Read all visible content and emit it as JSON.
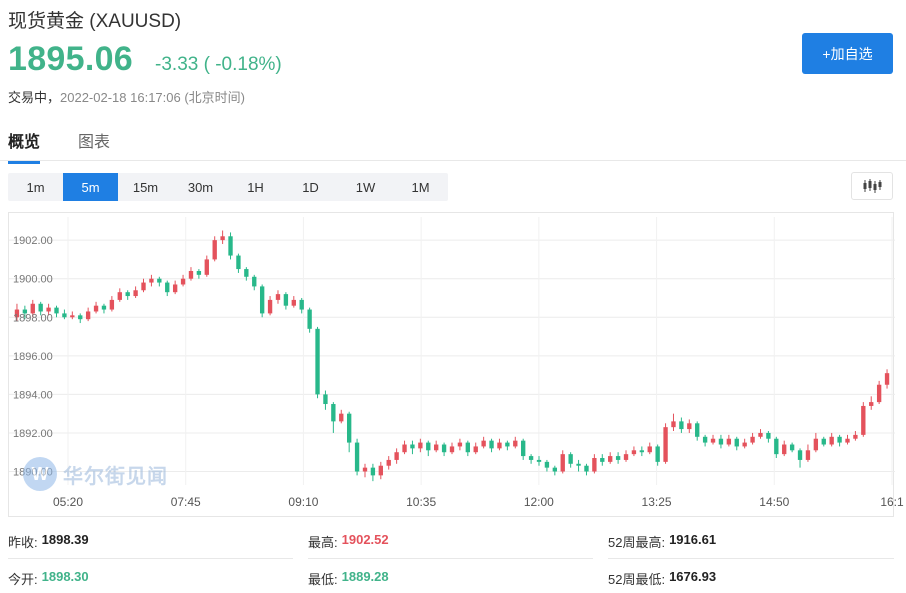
{
  "header": {
    "title": "现货黄金  (XAUUSD)",
    "price": "1895.06",
    "change": "-3.33 ( -0.18%)",
    "status_state": "交易中，",
    "status_time": "2022-02-18 16:17:06 (北京时间)",
    "add_button_label": "+加自选"
  },
  "tabs": [
    {
      "label": "概览",
      "active": true
    },
    {
      "label": "图表",
      "active": false
    }
  ],
  "periods": [
    "1m",
    "5m",
    "15m",
    "30m",
    "1H",
    "1D",
    "1W",
    "1M"
  ],
  "active_period": "5m",
  "chart_type_icon": "candlestick-icon",
  "watermark": {
    "text": "华尔街见闻",
    "logo_letter": "W"
  },
  "colors": {
    "up": "#e4525c",
    "down": "#28b88a",
    "accent": "#1f7fe3",
    "price": "#41b38a"
  },
  "chart_data": {
    "type": "candlestick",
    "y_ticks": [
      "1902.00",
      "1900.00",
      "1898.00",
      "1896.00",
      "1894.00",
      "1892.00",
      "1890.00"
    ],
    "ylim": [
      1889.3,
      1903.2
    ],
    "x_ticks": [
      "05:20",
      "07:45",
      "09:10",
      "10:35",
      "12:00",
      "13:25",
      "14:50",
      "16:1"
    ],
    "grid": true,
    "candles": [
      [
        1898.0,
        1898.4,
        1898.7,
        1897.8
      ],
      [
        1898.4,
        1898.2,
        1898.6,
        1897.9
      ],
      [
        1898.2,
        1898.7,
        1898.9,
        1898.0
      ],
      [
        1898.7,
        1898.3,
        1898.8,
        1898.1
      ],
      [
        1898.3,
        1898.5,
        1898.7,
        1898.1
      ],
      [
        1898.5,
        1898.2,
        1898.6,
        1898.0
      ],
      [
        1898.2,
        1898.0,
        1898.4,
        1897.9
      ],
      [
        1898.0,
        1898.1,
        1898.3,
        1897.9
      ],
      [
        1898.1,
        1897.9,
        1898.2,
        1897.7
      ],
      [
        1897.9,
        1898.3,
        1898.5,
        1897.8
      ],
      [
        1898.3,
        1898.6,
        1898.8,
        1898.2
      ],
      [
        1898.6,
        1898.4,
        1898.7,
        1898.2
      ],
      [
        1898.4,
        1898.9,
        1899.1,
        1898.3
      ],
      [
        1898.9,
        1899.3,
        1899.5,
        1898.8
      ],
      [
        1899.3,
        1899.1,
        1899.4,
        1898.9
      ],
      [
        1899.1,
        1899.4,
        1899.6,
        1899.0
      ],
      [
        1899.4,
        1899.8,
        1900.0,
        1899.3
      ],
      [
        1899.8,
        1900.0,
        1900.2,
        1899.6
      ],
      [
        1900.0,
        1899.8,
        1900.1,
        1899.6
      ],
      [
        1899.8,
        1899.3,
        1899.9,
        1899.1
      ],
      [
        1899.3,
        1899.7,
        1899.9,
        1899.2
      ],
      [
        1899.7,
        1900.0,
        1900.2,
        1899.6
      ],
      [
        1900.0,
        1900.4,
        1900.6,
        1899.9
      ],
      [
        1900.4,
        1900.2,
        1900.5,
        1900.0
      ],
      [
        1900.2,
        1901.0,
        1901.2,
        1900.1
      ],
      [
        1901.0,
        1902.0,
        1902.2,
        1900.9
      ],
      [
        1902.0,
        1902.2,
        1902.5,
        1901.8
      ],
      [
        1902.2,
        1901.2,
        1902.4,
        1901.0
      ],
      [
        1901.2,
        1900.5,
        1901.3,
        1900.3
      ],
      [
        1900.5,
        1900.1,
        1900.6,
        1899.9
      ],
      [
        1900.1,
        1899.6,
        1900.2,
        1899.4
      ],
      [
        1899.6,
        1898.2,
        1899.7,
        1898.0
      ],
      [
        1898.2,
        1898.9,
        1899.1,
        1898.1
      ],
      [
        1898.9,
        1899.2,
        1899.4,
        1898.7
      ],
      [
        1899.2,
        1898.6,
        1899.3,
        1898.4
      ],
      [
        1898.6,
        1898.9,
        1899.1,
        1898.5
      ],
      [
        1898.9,
        1898.4,
        1899.0,
        1898.2
      ],
      [
        1898.4,
        1897.4,
        1898.5,
        1897.2
      ],
      [
        1897.4,
        1894.0,
        1897.5,
        1893.8
      ],
      [
        1894.0,
        1893.5,
        1894.2,
        1893.2
      ],
      [
        1893.5,
        1892.6,
        1893.6,
        1892.0
      ],
      [
        1892.6,
        1893.0,
        1893.2,
        1892.5
      ],
      [
        1893.0,
        1891.5,
        1893.1,
        1891.0
      ],
      [
        1891.5,
        1890.0,
        1891.7,
        1889.8
      ],
      [
        1890.0,
        1890.2,
        1890.4,
        1889.7
      ],
      [
        1890.2,
        1889.8,
        1890.4,
        1889.5
      ],
      [
        1889.8,
        1890.3,
        1890.5,
        1889.6
      ],
      [
        1890.3,
        1890.6,
        1890.8,
        1890.1
      ],
      [
        1890.6,
        1891.0,
        1891.2,
        1890.4
      ],
      [
        1891.0,
        1891.4,
        1891.6,
        1890.9
      ],
      [
        1891.4,
        1891.2,
        1891.6,
        1890.9
      ],
      [
        1891.2,
        1891.5,
        1891.7,
        1891.0
      ],
      [
        1891.5,
        1891.1,
        1891.6,
        1890.8
      ],
      [
        1891.1,
        1891.4,
        1891.6,
        1891.0
      ],
      [
        1891.4,
        1891.0,
        1891.5,
        1890.8
      ],
      [
        1891.0,
        1891.3,
        1891.5,
        1890.9
      ],
      [
        1891.3,
        1891.5,
        1891.7,
        1891.1
      ],
      [
        1891.5,
        1891.0,
        1891.6,
        1890.8
      ],
      [
        1891.0,
        1891.3,
        1891.5,
        1890.9
      ],
      [
        1891.3,
        1891.6,
        1891.8,
        1891.2
      ],
      [
        1891.6,
        1891.2,
        1891.7,
        1891.0
      ],
      [
        1891.2,
        1891.5,
        1891.7,
        1891.1
      ],
      [
        1891.5,
        1891.3,
        1891.6,
        1891.1
      ],
      [
        1891.3,
        1891.6,
        1891.8,
        1891.2
      ],
      [
        1891.6,
        1890.8,
        1891.7,
        1890.6
      ],
      [
        1890.8,
        1890.6,
        1890.9,
        1890.4
      ],
      [
        1890.6,
        1890.5,
        1890.8,
        1890.3
      ],
      [
        1890.5,
        1890.2,
        1890.6,
        1890.0
      ],
      [
        1890.2,
        1890.0,
        1890.3,
        1889.8
      ],
      [
        1890.0,
        1890.9,
        1891.1,
        1889.9
      ],
      [
        1890.9,
        1890.4,
        1891.0,
        1890.2
      ],
      [
        1890.4,
        1890.3,
        1890.6,
        1890.0
      ],
      [
        1890.3,
        1890.0,
        1890.4,
        1889.8
      ],
      [
        1890.0,
        1890.7,
        1890.9,
        1889.9
      ],
      [
        1890.7,
        1890.5,
        1890.9,
        1890.3
      ],
      [
        1890.5,
        1890.8,
        1891.0,
        1890.4
      ],
      [
        1890.8,
        1890.6,
        1891.0,
        1890.4
      ],
      [
        1890.6,
        1890.9,
        1891.1,
        1890.5
      ],
      [
        1890.9,
        1891.1,
        1891.3,
        1890.8
      ],
      [
        1891.1,
        1891.0,
        1891.3,
        1890.8
      ],
      [
        1891.0,
        1891.3,
        1891.5,
        1890.9
      ],
      [
        1891.3,
        1890.5,
        1891.4,
        1890.3
      ],
      [
        1890.5,
        1892.3,
        1892.5,
        1890.4
      ],
      [
        1892.3,
        1892.6,
        1893.0,
        1892.1
      ],
      [
        1892.6,
        1892.2,
        1892.8,
        1892.0
      ],
      [
        1892.2,
        1892.5,
        1892.7,
        1892.0
      ],
      [
        1892.5,
        1891.8,
        1892.6,
        1891.6
      ],
      [
        1891.8,
        1891.5,
        1891.9,
        1891.3
      ],
      [
        1891.5,
        1891.7,
        1891.9,
        1891.4
      ],
      [
        1891.7,
        1891.4,
        1891.9,
        1891.2
      ],
      [
        1891.4,
        1891.7,
        1891.9,
        1891.3
      ],
      [
        1891.7,
        1891.3,
        1891.8,
        1891.1
      ],
      [
        1891.3,
        1891.5,
        1891.7,
        1891.2
      ],
      [
        1891.5,
        1891.8,
        1892.0,
        1891.4
      ],
      [
        1891.8,
        1892.0,
        1892.2,
        1891.7
      ],
      [
        1892.0,
        1891.7,
        1892.1,
        1891.5
      ],
      [
        1891.7,
        1890.9,
        1891.8,
        1890.7
      ],
      [
        1890.9,
        1891.4,
        1891.6,
        1890.8
      ],
      [
        1891.4,
        1891.1,
        1891.5,
        1891.0
      ],
      [
        1891.1,
        1890.6,
        1891.2,
        1890.2
      ],
      [
        1890.6,
        1891.1,
        1891.4,
        1890.5
      ],
      [
        1891.1,
        1891.7,
        1892.0,
        1891.0
      ],
      [
        1891.7,
        1891.4,
        1891.8,
        1891.3
      ],
      [
        1891.4,
        1891.8,
        1892.0,
        1891.3
      ],
      [
        1891.8,
        1891.5,
        1891.9,
        1891.3
      ],
      [
        1891.5,
        1891.7,
        1891.9,
        1891.4
      ],
      [
        1891.7,
        1891.9,
        1892.1,
        1891.6
      ],
      [
        1891.9,
        1893.4,
        1893.6,
        1891.8
      ],
      [
        1893.4,
        1893.6,
        1893.9,
        1893.2
      ],
      [
        1893.6,
        1894.5,
        1894.7,
        1893.5
      ],
      [
        1894.5,
        1895.1,
        1895.3,
        1894.3
      ]
    ]
  },
  "stats": {
    "prev_close_label": "昨收:",
    "prev_close": "1898.39",
    "high_label": "最高:",
    "high": "1902.52",
    "w52_high_label": "52周最高:",
    "w52_high": "1916.61",
    "open_label": "今开:",
    "open": "1898.30",
    "low_label": "最低:",
    "low": "1889.28",
    "w52_low_label": "52周最低:",
    "w52_low": "1676.93"
  }
}
